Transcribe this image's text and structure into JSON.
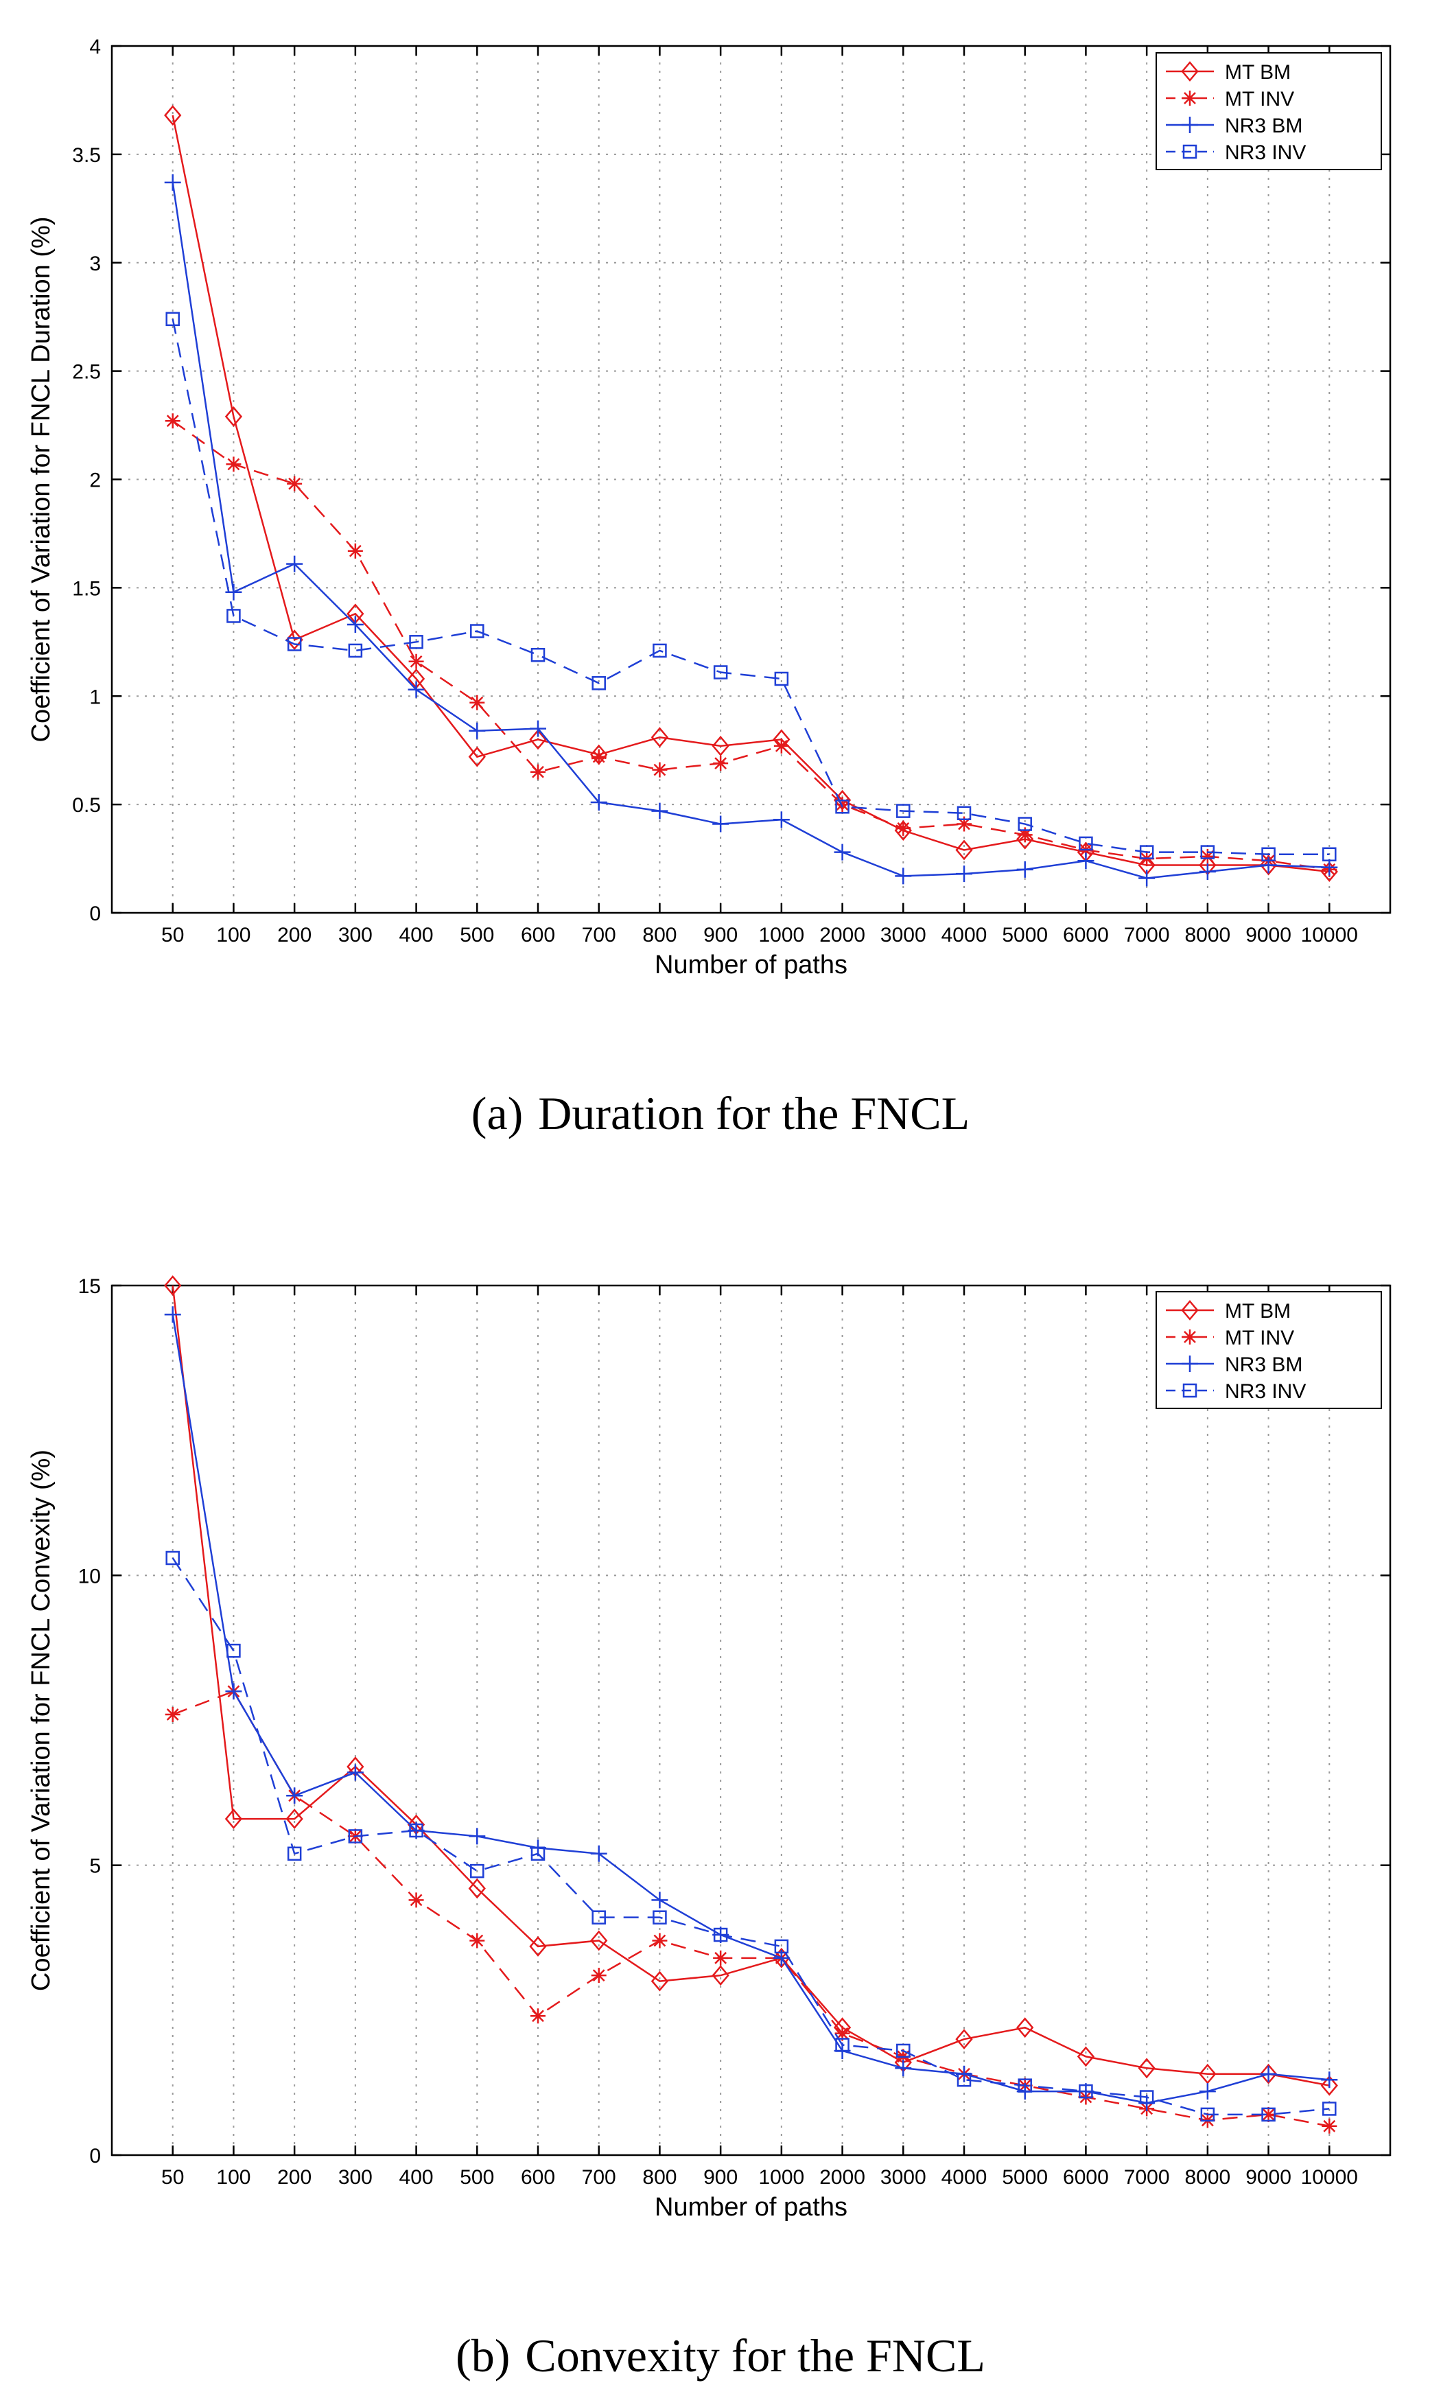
{
  "chart_data": [
    {
      "type": "line",
      "panel": "a",
      "caption_tag": "(a)",
      "caption": "Duration for the FNCL",
      "xlabel": "Number of paths",
      "ylabel": "Coefficient of Variation for FNCL Duration (%)",
      "categories": [
        "50",
        "100",
        "200",
        "300",
        "400",
        "500",
        "600",
        "700",
        "800",
        "900",
        "1000",
        "2000",
        "3000",
        "4000",
        "5000",
        "6000",
        "7000",
        "8000",
        "9000",
        "10000"
      ],
      "ylim": [
        0,
        4
      ],
      "yticks": [
        "0",
        "0.5",
        "1",
        "1.5",
        "2",
        "2.5",
        "3",
        "3.5",
        "4"
      ],
      "grid": true,
      "legend_position": "top-right",
      "series": [
        {
          "name": "MT BM",
          "color": "#e41a1c",
          "dash": "solid",
          "marker": "diamond",
          "values": [
            3.68,
            2.29,
            1.26,
            1.38,
            1.08,
            0.72,
            0.8,
            0.73,
            0.81,
            0.77,
            0.8,
            0.52,
            0.38,
            0.29,
            0.34,
            0.28,
            0.22,
            0.22,
            0.22,
            0.19
          ]
        },
        {
          "name": "MT INV",
          "color": "#e41a1c",
          "dash": "dashed",
          "marker": "star",
          "values": [
            2.27,
            2.07,
            1.98,
            1.67,
            1.16,
            0.97,
            0.65,
            0.72,
            0.66,
            0.69,
            0.77,
            0.5,
            0.39,
            0.41,
            0.36,
            0.29,
            0.25,
            0.26,
            0.24,
            0.2
          ]
        },
        {
          "name": "NR3 BM",
          "color": "#1f3fd6",
          "dash": "solid",
          "marker": "plus",
          "values": [
            3.37,
            1.48,
            1.61,
            1.33,
            1.03,
            0.84,
            0.85,
            0.51,
            0.47,
            0.41,
            0.43,
            0.28,
            0.17,
            0.18,
            0.2,
            0.24,
            0.16,
            0.19,
            0.22,
            0.21
          ]
        },
        {
          "name": "NR3 INV",
          "color": "#1f3fd6",
          "dash": "dashed",
          "marker": "square",
          "values": [
            2.74,
            1.37,
            1.24,
            1.21,
            1.25,
            1.3,
            1.19,
            1.06,
            1.21,
            1.11,
            1.08,
            0.49,
            0.47,
            0.46,
            0.41,
            0.32,
            0.28,
            0.28,
            0.27,
            0.27
          ]
        }
      ]
    },
    {
      "type": "line",
      "panel": "b",
      "caption_tag": "(b)",
      "caption": "Convexity for the FNCL",
      "xlabel": "Number of paths",
      "ylabel": "Coefficient of Variation for FNCL Convexity (%)",
      "categories": [
        "50",
        "100",
        "200",
        "300",
        "400",
        "500",
        "600",
        "700",
        "800",
        "900",
        "1000",
        "2000",
        "3000",
        "4000",
        "5000",
        "6000",
        "7000",
        "8000",
        "9000",
        "10000"
      ],
      "ylim": [
        0,
        15
      ],
      "yticks": [
        "0",
        "5",
        "10",
        "15"
      ],
      "grid": true,
      "legend_position": "top-right",
      "series": [
        {
          "name": "MT BM",
          "color": "#e41a1c",
          "dash": "solid",
          "marker": "diamond",
          "values": [
            15.0,
            5.8,
            5.8,
            6.7,
            5.7,
            4.6,
            3.6,
            3.7,
            3.0,
            3.1,
            3.4,
            2.2,
            1.6,
            2.0,
            2.2,
            1.7,
            1.5,
            1.4,
            1.4,
            1.2
          ]
        },
        {
          "name": "MT INV",
          "color": "#e41a1c",
          "dash": "dashed",
          "marker": "star",
          "values": [
            7.6,
            8.0,
            6.2,
            5.5,
            4.4,
            3.7,
            2.4,
            3.1,
            3.7,
            3.4,
            3.4,
            2.1,
            1.7,
            1.4,
            1.2,
            1.0,
            0.8,
            0.6,
            0.7,
            0.5
          ]
        },
        {
          "name": "NR3 BM",
          "color": "#1f3fd6",
          "dash": "solid",
          "marker": "plus",
          "values": [
            14.5,
            8.0,
            6.2,
            6.6,
            5.6,
            5.5,
            5.3,
            5.2,
            4.4,
            3.8,
            3.4,
            1.8,
            1.5,
            1.4,
            1.1,
            1.1,
            0.9,
            1.1,
            1.4,
            1.3
          ]
        },
        {
          "name": "NR3 INV",
          "color": "#1f3fd6",
          "dash": "dashed",
          "marker": "square",
          "values": [
            10.3,
            8.7,
            5.2,
            5.5,
            5.6,
            4.9,
            5.2,
            4.1,
            4.1,
            3.8,
            3.6,
            1.9,
            1.8,
            1.3,
            1.2,
            1.1,
            1.0,
            0.7,
            0.7,
            0.8
          ]
        }
      ]
    }
  ]
}
